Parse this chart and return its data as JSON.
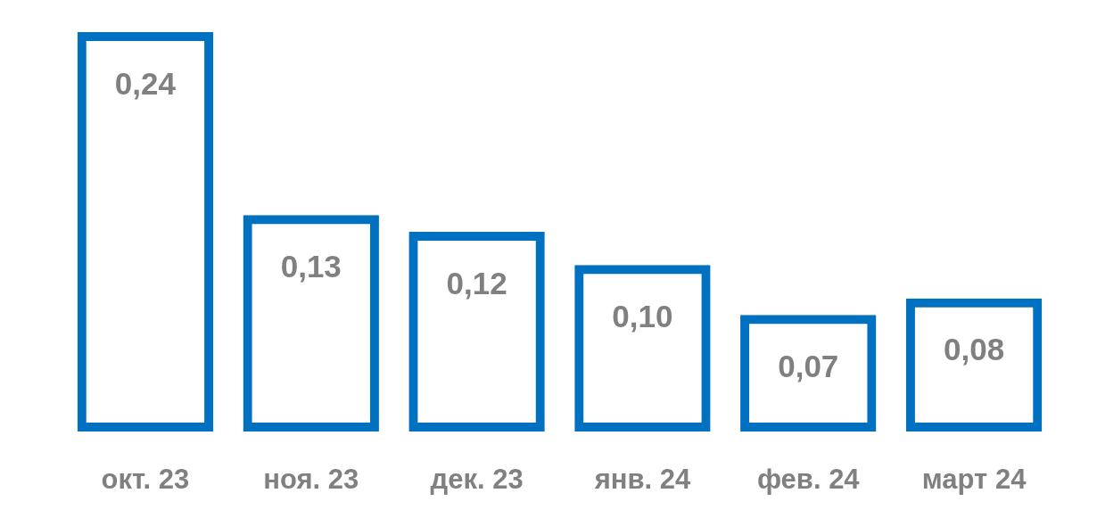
{
  "chart_data": {
    "type": "bar",
    "categories": [
      "окт. 23",
      "ноя. 23",
      "дек. 23",
      "янв. 24",
      "фев. 24",
      "март 24"
    ],
    "values": [
      0.24,
      0.13,
      0.12,
      0.1,
      0.07,
      0.08
    ],
    "value_labels": [
      "0,24",
      "0,13",
      "0,12",
      "0,10",
      "0,07",
      "0,08"
    ],
    "color": "#0070c0"
  }
}
